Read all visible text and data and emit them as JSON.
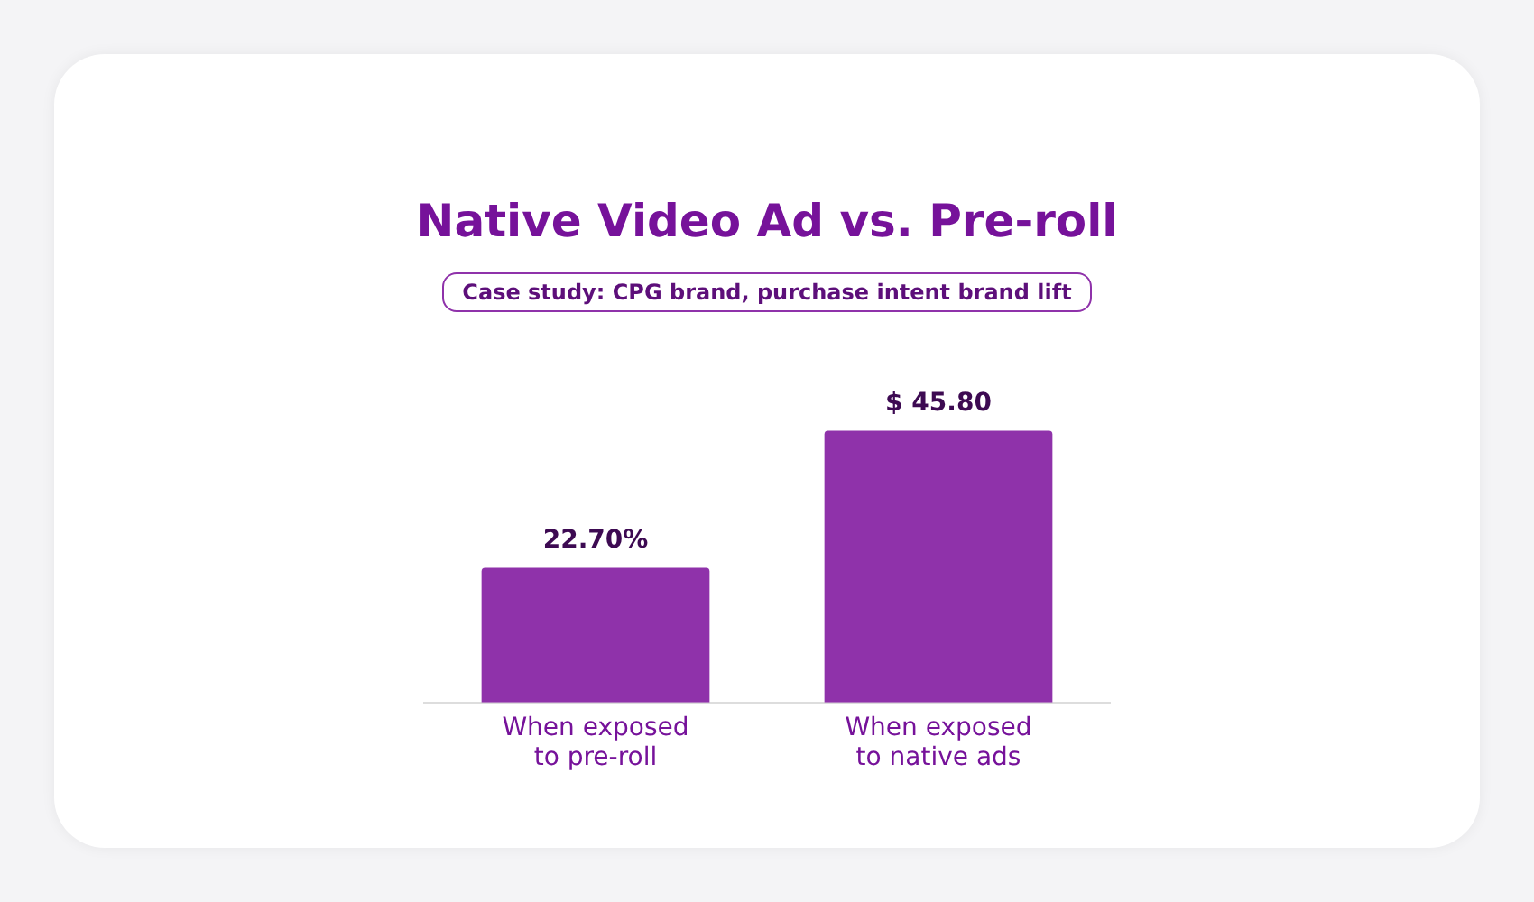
{
  "chart_data": {
    "type": "bar",
    "title": "Native Video Ad vs. Pre-roll",
    "subtitle": "Case study: CPG brand, purchase intent brand lift",
    "categories": [
      "When exposed to pre-roll",
      "When exposed to native ads"
    ],
    "values": [
      22.7,
      45.8
    ],
    "value_labels": [
      "22.70%",
      "$ 45.80"
    ],
    "colors": [
      "#8f32aa",
      "#8f32aa"
    ],
    "grid": false,
    "legend": false
  }
}
